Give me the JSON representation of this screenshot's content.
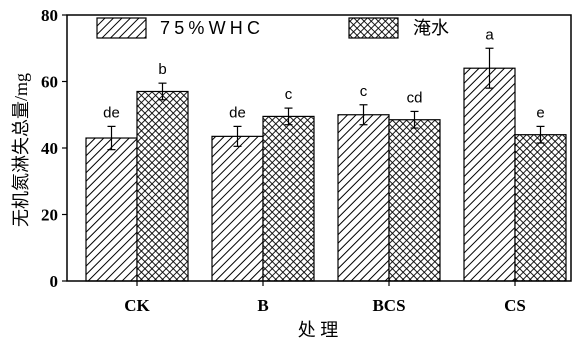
{
  "chart_data": {
    "type": "bar",
    "categories": [
      "CK",
      "B",
      "BCS",
      "CS"
    ],
    "series": [
      {
        "name": "75%WHC",
        "values": [
          43,
          43.5,
          50,
          64
        ],
        "errors": [
          3.5,
          3,
          3,
          6
        ],
        "significance": [
          "de",
          "de",
          "c",
          "a"
        ]
      },
      {
        "name": "淹水",
        "values": [
          57,
          49.5,
          48.5,
          44
        ],
        "errors": [
          2.5,
          2.5,
          2.5,
          2.5
        ],
        "significance": [
          "b",
          "c",
          "cd",
          "e"
        ]
      }
    ],
    "xlabel": "处 理",
    "ylabel": "无机氮淋失总量/mg",
    "ylim": [
      0,
      80
    ],
    "yticks": [
      0,
      20,
      40,
      60,
      80
    ],
    "grid": false,
    "legend": "top"
  }
}
